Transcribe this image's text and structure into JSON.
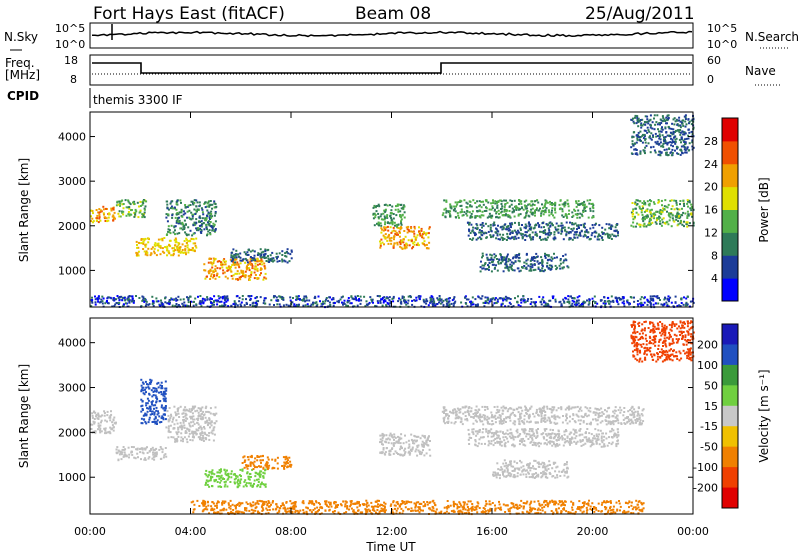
{
  "header": {
    "station": "Fort Hays East (fitACF)",
    "beam": "Beam 08",
    "date": "25/Aug/2011"
  },
  "noise_panel": {
    "left_label": "N.Sky",
    "right_label": "N.Search",
    "left_ticks": [
      "10^5",
      "10^0"
    ],
    "right_ticks": [
      "10^5",
      "10^0"
    ]
  },
  "freq_panel": {
    "left_label_1": "Freq.",
    "left_label_2": "[MHz]",
    "right_label": "Nave",
    "left_ticks": [
      "18",
      "8"
    ],
    "right_ticks": [
      "60",
      "0"
    ]
  },
  "cpid": {
    "label": "CPID",
    "program": "themis 3300 IF"
  },
  "colors": {
    "power_scale": [
      "#0000ff",
      "#1c3c98",
      "#2e7a58",
      "#52b048",
      "#e0e000",
      "#f0a000",
      "#f05000",
      "#e00000"
    ],
    "velocity_scale": [
      "#1a1ab8",
      "#2050c0",
      "#3a9a3a",
      "#70d040",
      "#c8c8c8",
      "#f0c000",
      "#f08000",
      "#f04000",
      "#e00000"
    ],
    "ground_scatter": "#c0c0c0"
  },
  "chart_data": [
    {
      "type": "heatmap",
      "name": "power",
      "ylabel": "Slant Range [km]",
      "yticks": [
        1000,
        2000,
        3000,
        4000
      ],
      "ylim": [
        180,
        4550
      ],
      "xlim_hours": [
        0,
        24
      ],
      "colorbar_label": "Power [dB]",
      "colorbar_ticks": [
        "4",
        "8",
        "12",
        "16",
        "20",
        "24",
        "28"
      ],
      "colorbar_range": [
        0,
        32
      ],
      "patches": [
        {
          "t": [
            0.0,
            1.0
          ],
          "r": [
            2100,
            2450
          ],
          "value": 22
        },
        {
          "t": [
            1.0,
            2.2
          ],
          "r": [
            2200,
            2600
          ],
          "value": 14
        },
        {
          "t": [
            1.8,
            4.2
          ],
          "r": [
            1350,
            1750
          ],
          "value": 20
        },
        {
          "t": [
            3.0,
            5.0
          ],
          "r": [
            1800,
            2600
          ],
          "value": 10
        },
        {
          "t": [
            4.5,
            7.0
          ],
          "r": [
            800,
            1300
          ],
          "value": 22
        },
        {
          "t": [
            5.5,
            8.0
          ],
          "r": [
            1200,
            1500
          ],
          "value": 8
        },
        {
          "t": [
            11.5,
            13.5
          ],
          "r": [
            1500,
            2000
          ],
          "value": 22
        },
        {
          "t": [
            11.2,
            12.5
          ],
          "r": [
            2000,
            2500
          ],
          "value": 12
        },
        {
          "t": [
            14.0,
            20.0
          ],
          "r": [
            2200,
            2600
          ],
          "value": 12
        },
        {
          "t": [
            15.0,
            21.0
          ],
          "r": [
            1700,
            2100
          ],
          "value": 8
        },
        {
          "t": [
            15.5,
            19.0
          ],
          "r": [
            1000,
            1400
          ],
          "value": 8
        },
        {
          "t": [
            21.5,
            24.0
          ],
          "r": [
            2000,
            2600
          ],
          "value": 14
        },
        {
          "t": [
            21.5,
            24.0
          ],
          "r": [
            3600,
            4500
          ],
          "value": 8
        },
        {
          "t": [
            0.0,
            24.0
          ],
          "r": [
            200,
            450
          ],
          "value": 6
        }
      ]
    },
    {
      "type": "heatmap",
      "name": "velocity",
      "ylabel": "Slant Range [km]",
      "yticks": [
        1000,
        2000,
        3000,
        4000
      ],
      "ylim": [
        180,
        4550
      ],
      "xlabel": "Time UT",
      "xticks": [
        "00:00",
        "04:00",
        "08:00",
        "12:00",
        "16:00",
        "20:00",
        "00:00"
      ],
      "xlim_hours": [
        0,
        24
      ],
      "colorbar_label": "Velocity [m s⁻¹]",
      "colorbar_ticks": [
        "200",
        "100",
        "50",
        "15",
        "-15",
        "-50",
        "-100",
        "-200"
      ],
      "patches": [
        {
          "t": [
            0.0,
            1.0
          ],
          "r": [
            2000,
            2500
          ],
          "value": 0
        },
        {
          "t": [
            1.0,
            3.0
          ],
          "r": [
            1400,
            1700
          ],
          "value": 0
        },
        {
          "t": [
            2.0,
            3.0
          ],
          "r": [
            2200,
            3200
          ],
          "value": 60
        },
        {
          "t": [
            3.0,
            5.0
          ],
          "r": [
            1800,
            2600
          ],
          "value": 0
        },
        {
          "t": [
            4.5,
            7.0
          ],
          "r": [
            800,
            1200
          ],
          "value": 40
        },
        {
          "t": [
            6.0,
            8.0
          ],
          "r": [
            1200,
            1500
          ],
          "value": -40
        },
        {
          "t": [
            11.5,
            13.5
          ],
          "r": [
            1500,
            2000
          ],
          "value": 0
        },
        {
          "t": [
            14.0,
            22.0
          ],
          "r": [
            2200,
            2600
          ],
          "value": 0
        },
        {
          "t": [
            15.0,
            21.0
          ],
          "r": [
            1700,
            2100
          ],
          "value": 0
        },
        {
          "t": [
            16.0,
            19.0
          ],
          "r": [
            1000,
            1400
          ],
          "value": 0
        },
        {
          "t": [
            21.5,
            24.0
          ],
          "r": [
            3600,
            4500
          ],
          "value": -60
        },
        {
          "t": [
            4.0,
            22.0
          ],
          "r": [
            200,
            500
          ],
          "value": -40
        }
      ]
    }
  ]
}
